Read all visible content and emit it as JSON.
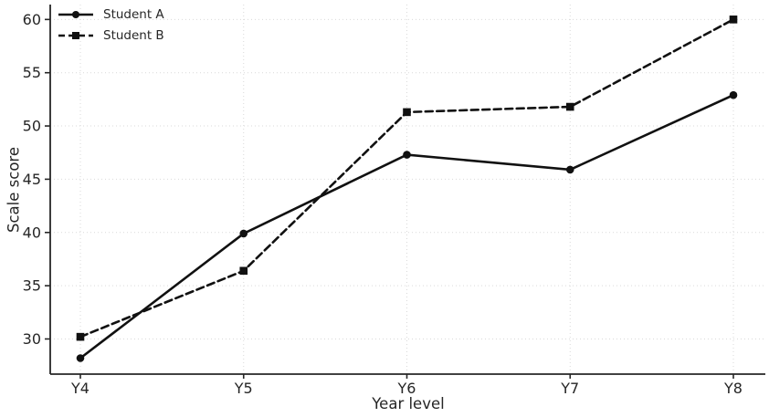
{
  "chart_data": {
    "type": "line",
    "title": "",
    "xlabel": "Year level",
    "ylabel": "Scale score",
    "categories": [
      "Y4",
      "Y5",
      "Y6",
      "Y7",
      "Y8"
    ],
    "series": [
      {
        "name": "Student A",
        "values": [
          28.2,
          39.9,
          47.3,
          45.9,
          52.9
        ],
        "line_style": "solid",
        "marker": "circle"
      },
      {
        "name": "Student B",
        "values": [
          30.2,
          36.4,
          51.3,
          51.8,
          60.0
        ],
        "line_style": "dashed",
        "marker": "square"
      }
    ],
    "yticks": [
      30,
      35,
      40,
      45,
      50,
      55,
      60
    ],
    "ylim": [
      26.7,
      61.4
    ],
    "grid": "dotted",
    "legend_position": "top-left",
    "colors": {
      "line": "#111111",
      "text": "#262626",
      "axis": "#262626",
      "grid": "#d9d9d9",
      "background": "#ffffff"
    }
  }
}
